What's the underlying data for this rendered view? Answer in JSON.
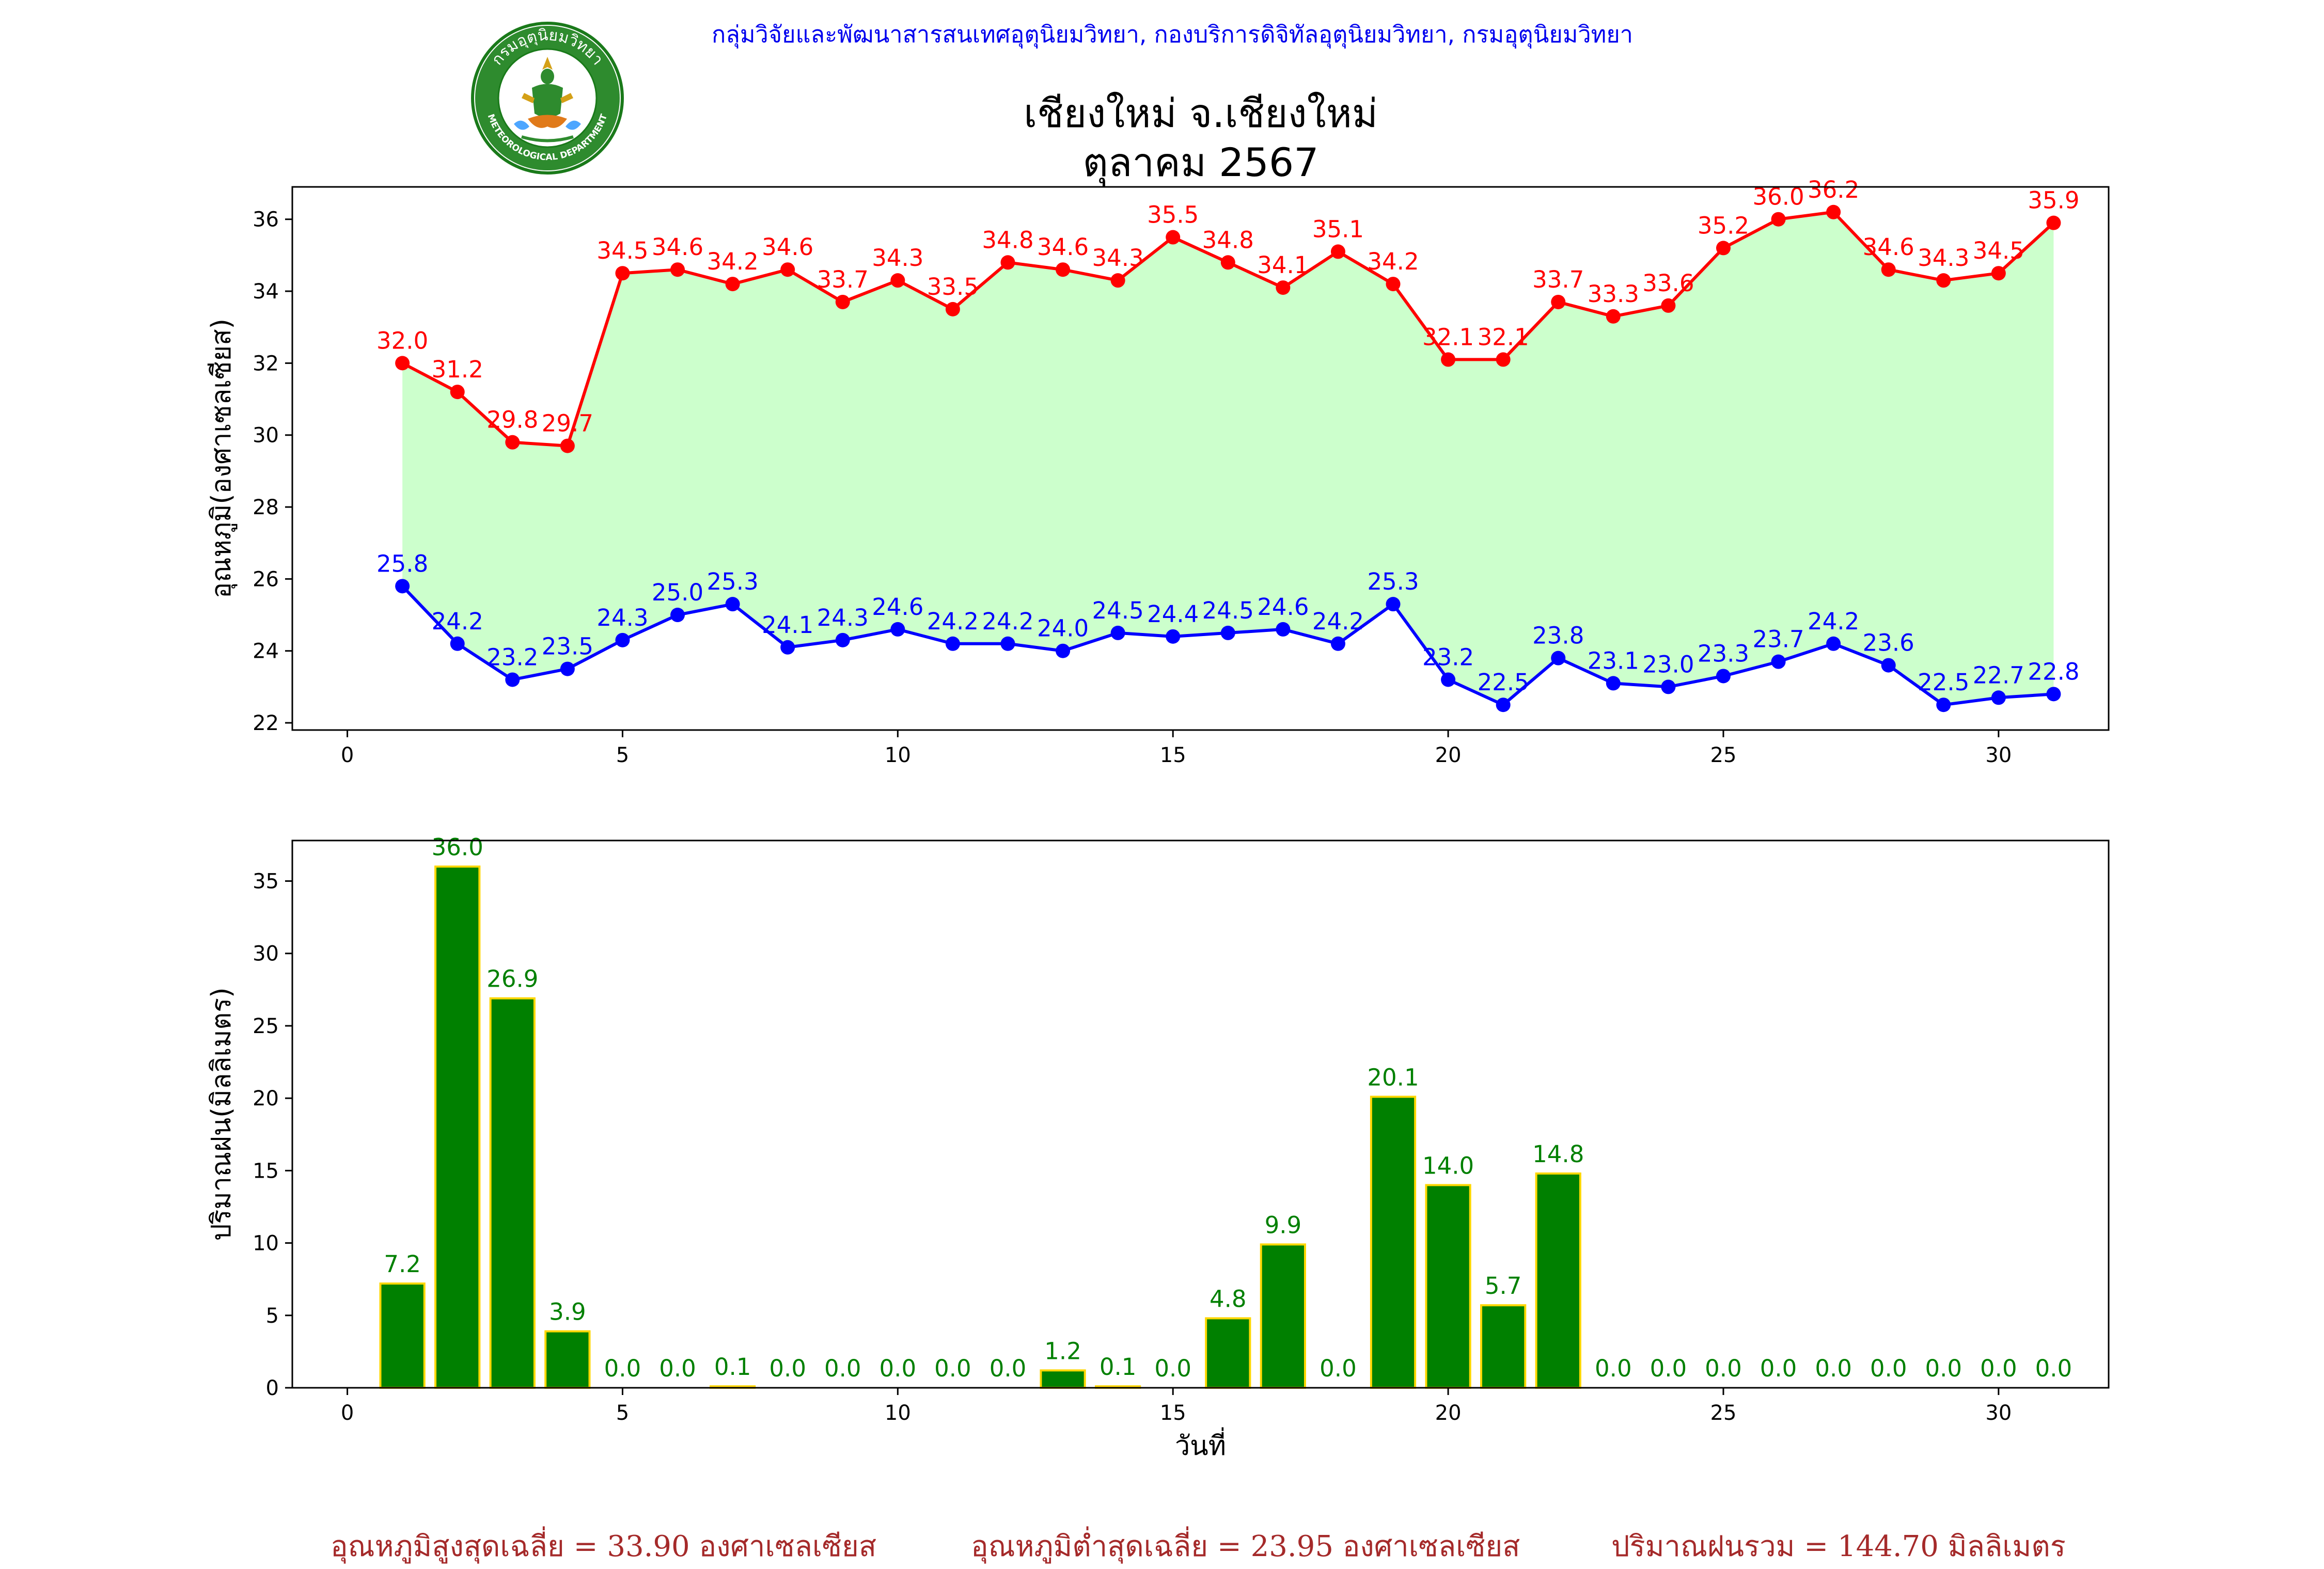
{
  "header": {
    "agency": "กลุ่มวิจัยและพัฒนาสารสนเทศอุตุนิยมวิทยา, กองบริการดิจิทัลอุตุนิยมวิทยา, กรมอุตุนิยมวิทยา",
    "logo_top_text": "กรมอุตุนิยมวิทยา",
    "logo_bottom_text": "METEOROLOGICAL DEPARTMENT"
  },
  "title_line1": "เชียงใหม่ จ.เชียงใหม่",
  "title_line2": "ตุลาคม 2567",
  "colors": {
    "max_line": "#ff0000",
    "min_line": "#0000ff",
    "fill": "#ccffcc",
    "rain_bar": "#008000",
    "rain_edge": "#ffd700",
    "rain_label": "#008000",
    "summary": "#a52a2a",
    "header": "#0000ee"
  },
  "chart_data": [
    {
      "type": "line",
      "ylabel": "อุณหภูมิ(องศาเซลเซียส)",
      "xlabel": "",
      "x": [
        1,
        2,
        3,
        4,
        5,
        6,
        7,
        8,
        9,
        10,
        11,
        12,
        13,
        14,
        15,
        16,
        17,
        18,
        19,
        20,
        21,
        22,
        23,
        24,
        25,
        26,
        27,
        28,
        29,
        30,
        31
      ],
      "xlim": [
        -1,
        32
      ],
      "ylim": [
        21.8,
        36.9
      ],
      "xticks": [
        0,
        5,
        10,
        15,
        20,
        25,
        30
      ],
      "yticks": [
        22,
        24,
        26,
        28,
        30,
        32,
        34,
        36
      ],
      "grid": false,
      "series": [
        {
          "values": [
            32.0,
            31.2,
            29.8,
            29.7,
            34.5,
            34.6,
            34.2,
            34.6,
            33.7,
            34.3,
            33.5,
            34.8,
            34.6,
            34.3,
            35.5,
            34.8,
            34.1,
            35.1,
            34.2,
            32.1,
            32.1,
            33.7,
            33.3,
            33.6,
            35.2,
            36.0,
            36.2,
            34.6,
            34.3,
            34.5,
            35.9
          ],
          "labels": [
            "32.0",
            "31.2",
            "29.8",
            "29.7",
            "34.5",
            "34.6",
            "34.2",
            "34.6",
            "33.7",
            "34.3",
            "33.5",
            "34.8",
            "34.6",
            "34.3",
            "35.5",
            "34.8",
            "34.1",
            "35.1",
            "34.2",
            "32.1",
            "32.1",
            "33.7",
            "33.3",
            "33.6",
            "35.2",
            "36.0",
            "36.2",
            "34.6",
            "34.3",
            "34.5",
            "35.9"
          ]
        },
        {
          "values": [
            25.8,
            24.2,
            23.2,
            23.5,
            24.3,
            25.0,
            25.3,
            24.1,
            24.3,
            24.6,
            24.2,
            24.2,
            24.0,
            24.5,
            24.4,
            24.5,
            24.6,
            24.2,
            25.3,
            23.2,
            22.5,
            23.8,
            23.1,
            23.0,
            23.3,
            23.7,
            24.2,
            23.6,
            22.5,
            22.7,
            22.8
          ],
          "labels": [
            "25.8",
            "24.2",
            "23.2",
            "23.5",
            "24.3",
            "25.0",
            "25.3",
            "24.1",
            "24.3",
            "24.6",
            "24.2",
            "24.2",
            "24.0",
            "24.5",
            "24.4",
            "24.5",
            "24.6",
            "24.2",
            "25.3",
            "23.2",
            "22.5",
            "23.8",
            "23.1",
            "23.0",
            "23.3",
            "23.7",
            "24.2",
            "23.6",
            "22.5",
            "22.7",
            "22.8"
          ]
        }
      ]
    },
    {
      "type": "bar",
      "ylabel": "ปริมาณฝน(มิลลิเมตร)",
      "xlabel": "วันที่",
      "x": [
        1,
        2,
        3,
        4,
        5,
        6,
        7,
        8,
        9,
        10,
        11,
        12,
        13,
        14,
        15,
        16,
        17,
        18,
        19,
        20,
        21,
        22,
        23,
        24,
        25,
        26,
        27,
        28,
        29,
        30,
        31
      ],
      "xlim": [
        -1,
        32
      ],
      "ylim": [
        0,
        37.8
      ],
      "xticks": [
        0,
        5,
        10,
        15,
        20,
        25,
        30
      ],
      "yticks": [
        0,
        5,
        10,
        15,
        20,
        25,
        30,
        35
      ],
      "grid": false,
      "values": [
        7.2,
        36.0,
        26.9,
        3.9,
        0.0,
        0.0,
        0.1,
        0.0,
        0.0,
        0.0,
        0.0,
        0.0,
        1.2,
        0.1,
        0.0,
        4.8,
        9.9,
        0.0,
        20.1,
        14.0,
        5.7,
        14.8,
        0.0,
        0.0,
        0.0,
        0.0,
        0.0,
        0.0,
        0.0,
        0.0,
        0.0
      ],
      "labels": [
        "7.2",
        "36.0",
        "26.9",
        "3.9",
        "0.0",
        "0.0",
        "0.1",
        "0.0",
        "0.0",
        "0.0",
        "0.0",
        "0.0",
        "1.2",
        "0.1",
        "0.0",
        "4.8",
        "9.9",
        "0.0",
        "20.1",
        "14.0",
        "5.7",
        "14.8",
        "0.0",
        "0.0",
        "0.0",
        "0.0",
        "0.0",
        "0.0",
        "0.0",
        "0.0",
        "0.0"
      ]
    }
  ],
  "summary": {
    "avg_max": "อุณหภูมิสูงสุดเฉลี่ย = 33.90 องศาเซลเซียส",
    "avg_min": "อุณหภูมิต่ำสุดเฉลี่ย = 23.95 องศาเซลเซียส",
    "total_rain": "ปริมาณฝนรวม = 144.70 มิลลิเมตร"
  }
}
